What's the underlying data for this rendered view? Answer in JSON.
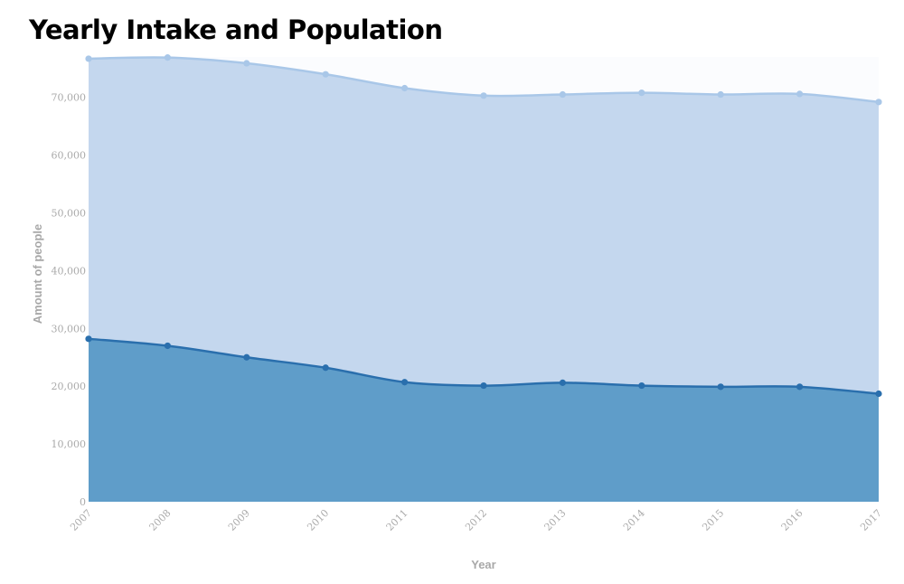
{
  "chart_data": {
    "type": "area",
    "title": "Yearly Intake and Population",
    "xlabel": "Year",
    "ylabel": "Amount of people",
    "x": [
      "2007",
      "2008",
      "2009",
      "2010",
      "2011",
      "2012",
      "2013",
      "2014",
      "2015",
      "2016",
      "2017"
    ],
    "ylim": [
      0,
      77000
    ],
    "yticks": [
      0,
      10000,
      20000,
      30000,
      40000,
      50000,
      60000,
      70000
    ],
    "yticklabels": [
      "0",
      "10,000",
      "20,000",
      "30,000",
      "40,000",
      "50,000",
      "60,000",
      "70,000"
    ],
    "grid": false,
    "series": [
      {
        "values": [
          76700,
          76900,
          75900,
          74000,
          71600,
          70300,
          70500,
          70800,
          70500,
          70600,
          69200
        ],
        "line_color": "#a9c7e8",
        "fill_color": "#c4d7ee"
      },
      {
        "values": [
          28200,
          27000,
          25000,
          23200,
          20700,
          20100,
          20600,
          20100,
          19900,
          19900,
          18700
        ],
        "line_color": "#2a6fad",
        "fill_color": "#5f9dc9"
      }
    ]
  }
}
